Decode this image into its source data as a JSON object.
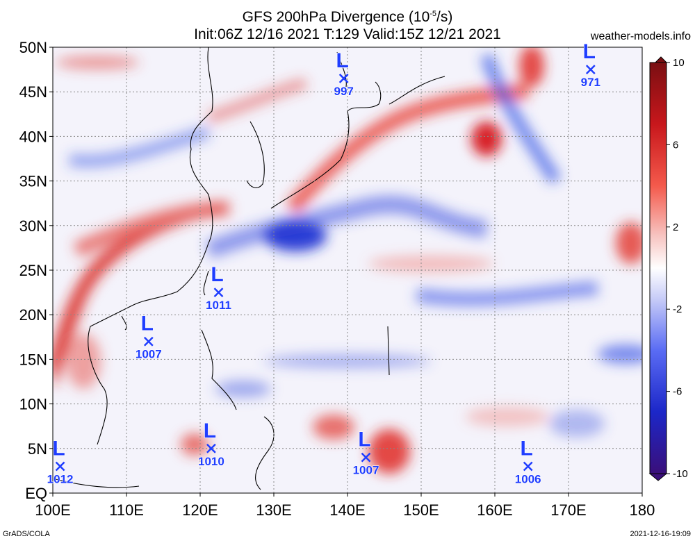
{
  "title": {
    "line1_prefix": "GFS 200hPa Divergence (10",
    "line1_exp": "-5",
    "line1_suffix": "/s)",
    "line2": "Init:06Z 12/16 2021 T:129 Valid:15Z 12/21 2021"
  },
  "brand": "weather-models.info",
  "footer": {
    "left": "GrADS/COLA",
    "right": "2021-12-16-19:09"
  },
  "map": {
    "lon_labels": [
      "100E",
      "110E",
      "120E",
      "130E",
      "140E",
      "150E",
      "160E",
      "170E",
      "180"
    ],
    "lat_labels": [
      "EQ",
      "5N",
      "10N",
      "15N",
      "20N",
      "25N",
      "30N",
      "35N",
      "40N",
      "45N",
      "50N"
    ],
    "lon_range": [
      100,
      180
    ],
    "lat_range": [
      0,
      50
    ],
    "grid": true,
    "colors": {
      "positive": "#e8302a",
      "negative": "#2a4be8",
      "neutral": "#ffffff"
    }
  },
  "colorbar": {
    "labels": [
      "10",
      "6",
      "2",
      "-2",
      "-6",
      "-10"
    ],
    "values": [
      10,
      6,
      2,
      -2,
      -6,
      -10
    ],
    "range": [
      -10,
      10
    ]
  },
  "lows": [
    {
      "letter": "L",
      "pressure": "997",
      "lon": 139.5,
      "lat": 46.5
    },
    {
      "letter": "L",
      "pressure": "971",
      "lon": 173.0,
      "lat": 47.5
    },
    {
      "letter": "L",
      "pressure": "1011",
      "lon": 122.5,
      "lat": 22.5
    },
    {
      "letter": "L",
      "pressure": "1007",
      "lon": 113.0,
      "lat": 17.0
    },
    {
      "letter": "L",
      "pressure": "1010",
      "lon": 121.5,
      "lat": 5.0
    },
    {
      "letter": "L",
      "pressure": "1007",
      "lon": 142.5,
      "lat": 4.0
    },
    {
      "letter": "L",
      "pressure": "1006",
      "lon": 164.5,
      "lat": 3.0
    },
    {
      "letter": "L",
      "pressure": "1012",
      "lon": 101.0,
      "lat": 3.0
    }
  ]
}
